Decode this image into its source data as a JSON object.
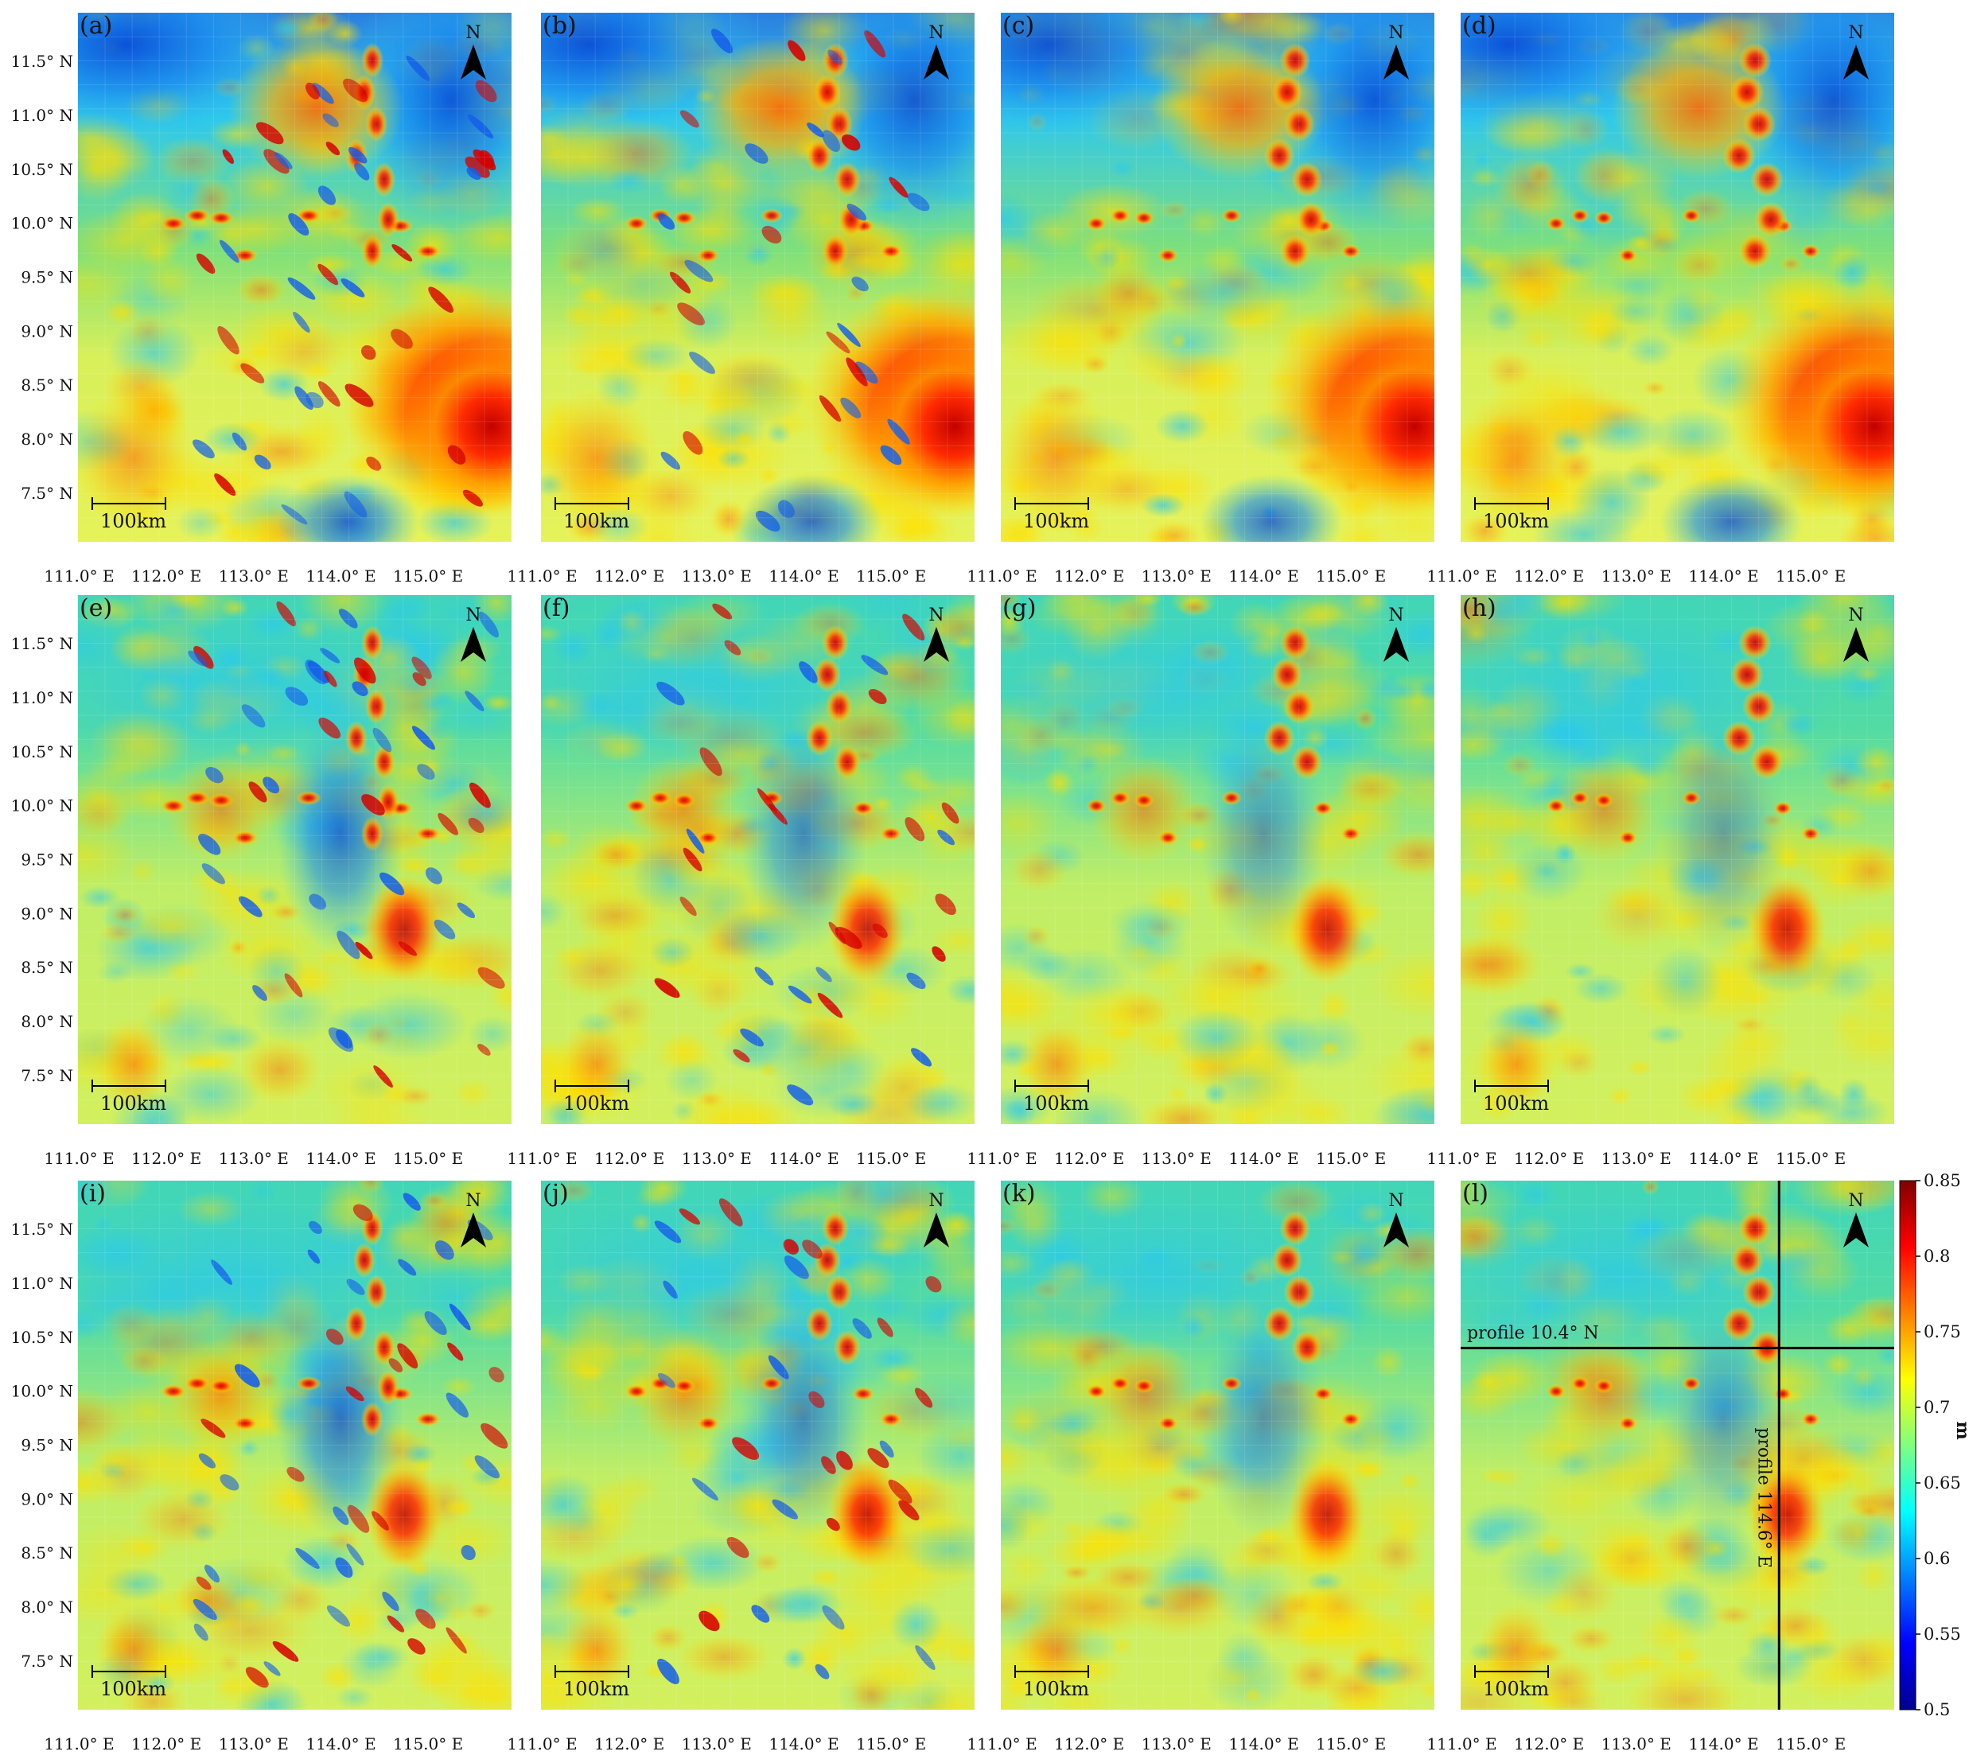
{
  "figure": {
    "panels": [
      {
        "label": "(a)",
        "style": "a",
        "profiles": false
      },
      {
        "label": "(b)",
        "style": "b",
        "profiles": false
      },
      {
        "label": "(c)",
        "style": "c",
        "profiles": false
      },
      {
        "label": "(d)",
        "style": "d",
        "profiles": false
      },
      {
        "label": "(e)",
        "style": "e",
        "profiles": false
      },
      {
        "label": "(f)",
        "style": "f",
        "profiles": false
      },
      {
        "label": "(g)",
        "style": "g",
        "profiles": false
      },
      {
        "label": "(h)",
        "style": "h",
        "profiles": false
      },
      {
        "label": "(i)",
        "style": "i",
        "profiles": false
      },
      {
        "label": "(j)",
        "style": "j",
        "profiles": false
      },
      {
        "label": "(k)",
        "style": "k",
        "profiles": false
      },
      {
        "label": "(l)",
        "style": "l",
        "profiles": true
      }
    ],
    "lat_ticks": [
      "11.5° N",
      "11.0° N",
      "10.5° N",
      "10.0° N",
      "9.5° N",
      "9.0° N",
      "8.5° N",
      "8.0° N",
      "7.5° N"
    ],
    "lon_ticks": [
      "111.0° E",
      "112.0° E",
      "113.0° E",
      "114.0° E",
      "115.0° E"
    ],
    "scale_bar_label": "100km",
    "north_arrow_label": "N",
    "colorbar": {
      "ticks": [
        "0.85",
        "0.8",
        "0.75",
        "0.7",
        "0.65",
        "0.6",
        "0.55",
        "0.5"
      ],
      "unit": "m",
      "range": [
        0.5,
        0.85
      ],
      "colormap": "jet",
      "colors": [
        "#00008f",
        "#0000ff",
        "#0080ff",
        "#00ffff",
        "#80ff80",
        "#ffff00",
        "#ff8000",
        "#ff0000",
        "#800000"
      ]
    },
    "profiles": {
      "horizontal_label": "profile 10.4° N",
      "horizontal_lat": 10.4,
      "vertical_label": "profile 114.6° E",
      "vertical_lon": 114.6
    }
  }
}
